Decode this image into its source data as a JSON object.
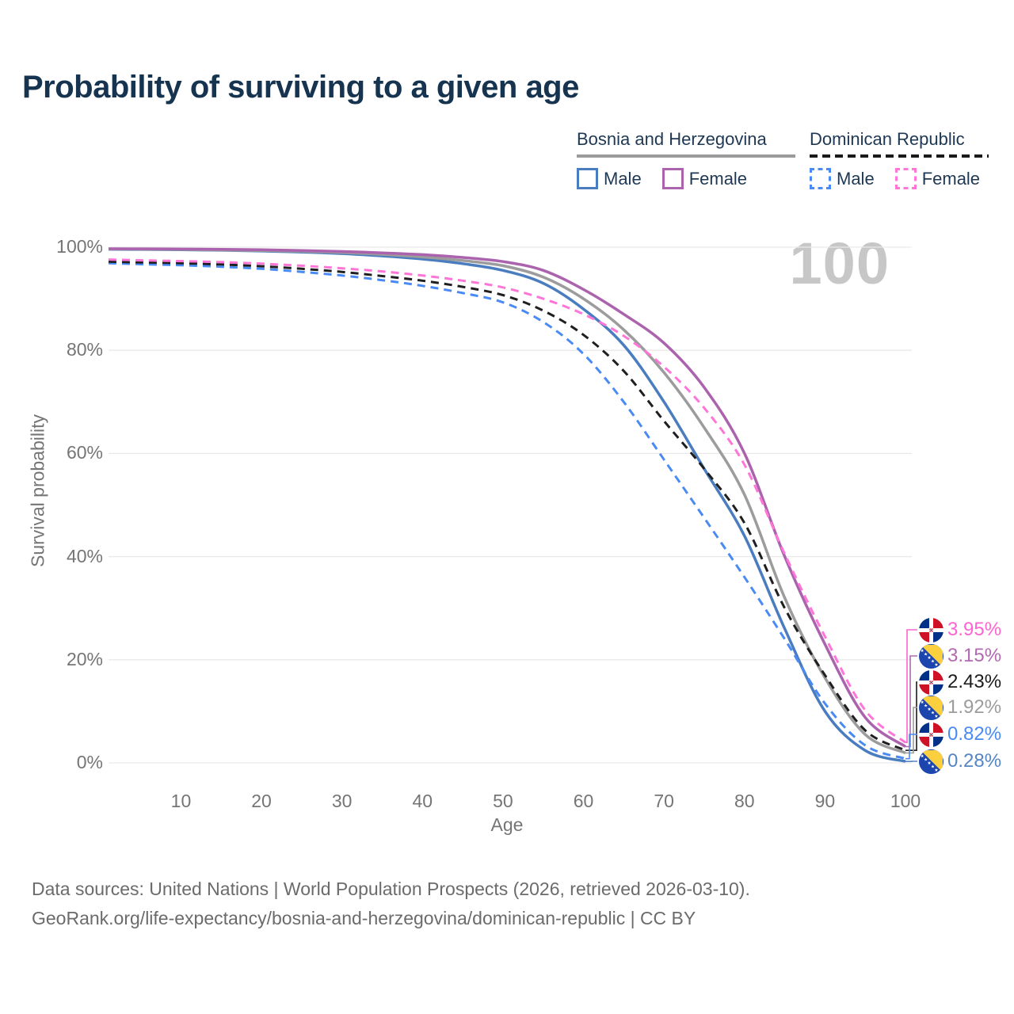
{
  "title": "Probability of surviving to a given age",
  "watermark": "100",
  "legend": {
    "groups": [
      {
        "country": "Bosnia and Herzegovina",
        "line_style": "solid",
        "line_color": "#9b9b9b",
        "items": [
          {
            "label": "Male",
            "color": "#4a7dbf",
            "style": "solid"
          },
          {
            "label": "Female",
            "color": "#ab63ae",
            "style": "solid"
          }
        ]
      },
      {
        "country": "Dominican Republic",
        "line_style": "dashed",
        "line_color": "#1a1a1a",
        "items": [
          {
            "label": "Male",
            "color": "#4a8af4",
            "style": "dashed"
          },
          {
            "label": "Female",
            "color": "#ff75d8",
            "style": "dashed"
          }
        ]
      }
    ]
  },
  "axes": {
    "x_label": "Age",
    "y_label": "Survival probability",
    "x_ticks": [
      {
        "value": 10,
        "label": "10"
      },
      {
        "value": 20,
        "label": "20"
      },
      {
        "value": 30,
        "label": "30"
      },
      {
        "value": 40,
        "label": "40"
      },
      {
        "value": 50,
        "label": "50"
      },
      {
        "value": 60,
        "label": "60"
      },
      {
        "value": 70,
        "label": "70"
      },
      {
        "value": 80,
        "label": "80"
      },
      {
        "value": 90,
        "label": "90"
      },
      {
        "value": 100,
        "label": "100"
      }
    ],
    "y_ticks": [
      {
        "value": 100,
        "label": "100%"
      },
      {
        "value": 80,
        "label": "80%"
      },
      {
        "value": 60,
        "label": "60%"
      },
      {
        "value": 40,
        "label": "40%"
      },
      {
        "value": 20,
        "label": "20%"
      },
      {
        "value": 0,
        "label": "0%"
      }
    ]
  },
  "end_labels": [
    {
      "series": "dr_female",
      "value": "3.95%",
      "flag": "dominican-republic",
      "color": "#ff63d1"
    },
    {
      "series": "bih_female",
      "value": "3.15%",
      "flag": "bosnia-and-herzegovina",
      "color": "#b269b2"
    },
    {
      "series": "dr_both",
      "value": "2.43%",
      "flag": "dominican-republic",
      "color": "#1c1c1c"
    },
    {
      "series": "bih_both",
      "value": "1.92%",
      "flag": "bosnia-and-herzegovina",
      "color": "#9c9c9c"
    },
    {
      "series": "dr_male",
      "value": "0.82%",
      "flag": "dominican-republic",
      "color": "#4a8af4"
    },
    {
      "series": "bih_male",
      "value": "0.28%",
      "flag": "bosnia-and-herzegovina",
      "color": "#5585c5"
    }
  ],
  "footer": {
    "line1": "Data sources: United Nations | World Population Prospects (2026, retrieved 2026-03-10).",
    "line2": "GeoRank.org/life-expectancy/bosnia-and-herzegovina/dominican-republic | CC BY"
  },
  "chart_data": {
    "type": "line",
    "title": "Probability of surviving to a given age",
    "xlabel": "Age",
    "ylabel": "Survival probability",
    "unit": "%",
    "xlim": [
      1,
      100
    ],
    "ylim": [
      0,
      100
    ],
    "grid": "horizontal-only",
    "legend_position": "top-right",
    "x": [
      1,
      5,
      10,
      15,
      20,
      25,
      30,
      35,
      40,
      45,
      50,
      55,
      60,
      65,
      70,
      75,
      80,
      85,
      90,
      95,
      100
    ],
    "series": [
      {
        "id": "bih_male",
        "name": "Bosnia and Herzegovina — Male",
        "color": "#4a7dbf",
        "dash": "solid",
        "end_label": "0.28%",
        "values": [
          99.6,
          99.55,
          99.5,
          99.4,
          99.25,
          99.05,
          98.75,
          98.3,
          97.7,
          96.8,
          95.5,
          93.0,
          88.0,
          81.0,
          70.0,
          57.0,
          44.0,
          26.0,
          10.0,
          2.4,
          0.28
        ]
      },
      {
        "id": "bih_both",
        "name": "Bosnia and Herzegovina — Both sexes",
        "color": "#9c9c9c",
        "dash": "solid",
        "end_label": "1.92%",
        "values": [
          99.65,
          99.6,
          99.55,
          99.45,
          99.35,
          99.2,
          98.95,
          98.6,
          98.1,
          97.4,
          96.4,
          94.2,
          90.0,
          84.0,
          75.7,
          65.0,
          52.0,
          32.0,
          16.5,
          5.5,
          1.92
        ]
      },
      {
        "id": "bih_female",
        "name": "Bosnia and Herzegovina — Female",
        "color": "#ab63ae",
        "dash": "solid",
        "end_label": "3.15%",
        "values": [
          99.7,
          99.67,
          99.63,
          99.58,
          99.5,
          99.35,
          99.15,
          98.9,
          98.55,
          98.0,
          97.2,
          95.5,
          91.8,
          87.0,
          81.4,
          72.8,
          60.0,
          40.0,
          23.0,
          8.8,
          3.15
        ]
      },
      {
        "id": "dr_male",
        "name": "Dominican Republic — Male",
        "color": "#4a8af4",
        "dash": "dashed",
        "end_label": "0.82%",
        "values": [
          96.9,
          96.7,
          96.5,
          96.2,
          95.8,
          95.2,
          94.5,
          93.6,
          92.5,
          91.1,
          89.3,
          85.5,
          79.3,
          70.0,
          58.8,
          47.5,
          36.0,
          24.0,
          11.5,
          3.4,
          0.82
        ]
      },
      {
        "id": "dr_both",
        "name": "Dominican Republic — Both sexes",
        "color": "#1f1f1f",
        "dash": "dashed",
        "end_label": "2.43%",
        "values": [
          97.2,
          97.05,
          96.9,
          96.65,
          96.3,
          95.8,
          95.2,
          94.4,
          93.5,
          92.3,
          90.7,
          87.7,
          83.0,
          76.0,
          66.3,
          57.0,
          46.5,
          30.0,
          17.0,
          6.3,
          2.43
        ]
      },
      {
        "id": "dr_female",
        "name": "Dominican Republic — Female",
        "color": "#ff75d8",
        "dash": "dashed",
        "end_label": "3.95%",
        "values": [
          97.6,
          97.45,
          97.3,
          97.1,
          96.8,
          96.4,
          95.9,
          95.3,
          94.5,
          93.5,
          92.2,
          90.0,
          87.0,
          82.8,
          76.8,
          68.8,
          57.8,
          40.5,
          24.5,
          10.2,
          3.95
        ]
      }
    ]
  }
}
